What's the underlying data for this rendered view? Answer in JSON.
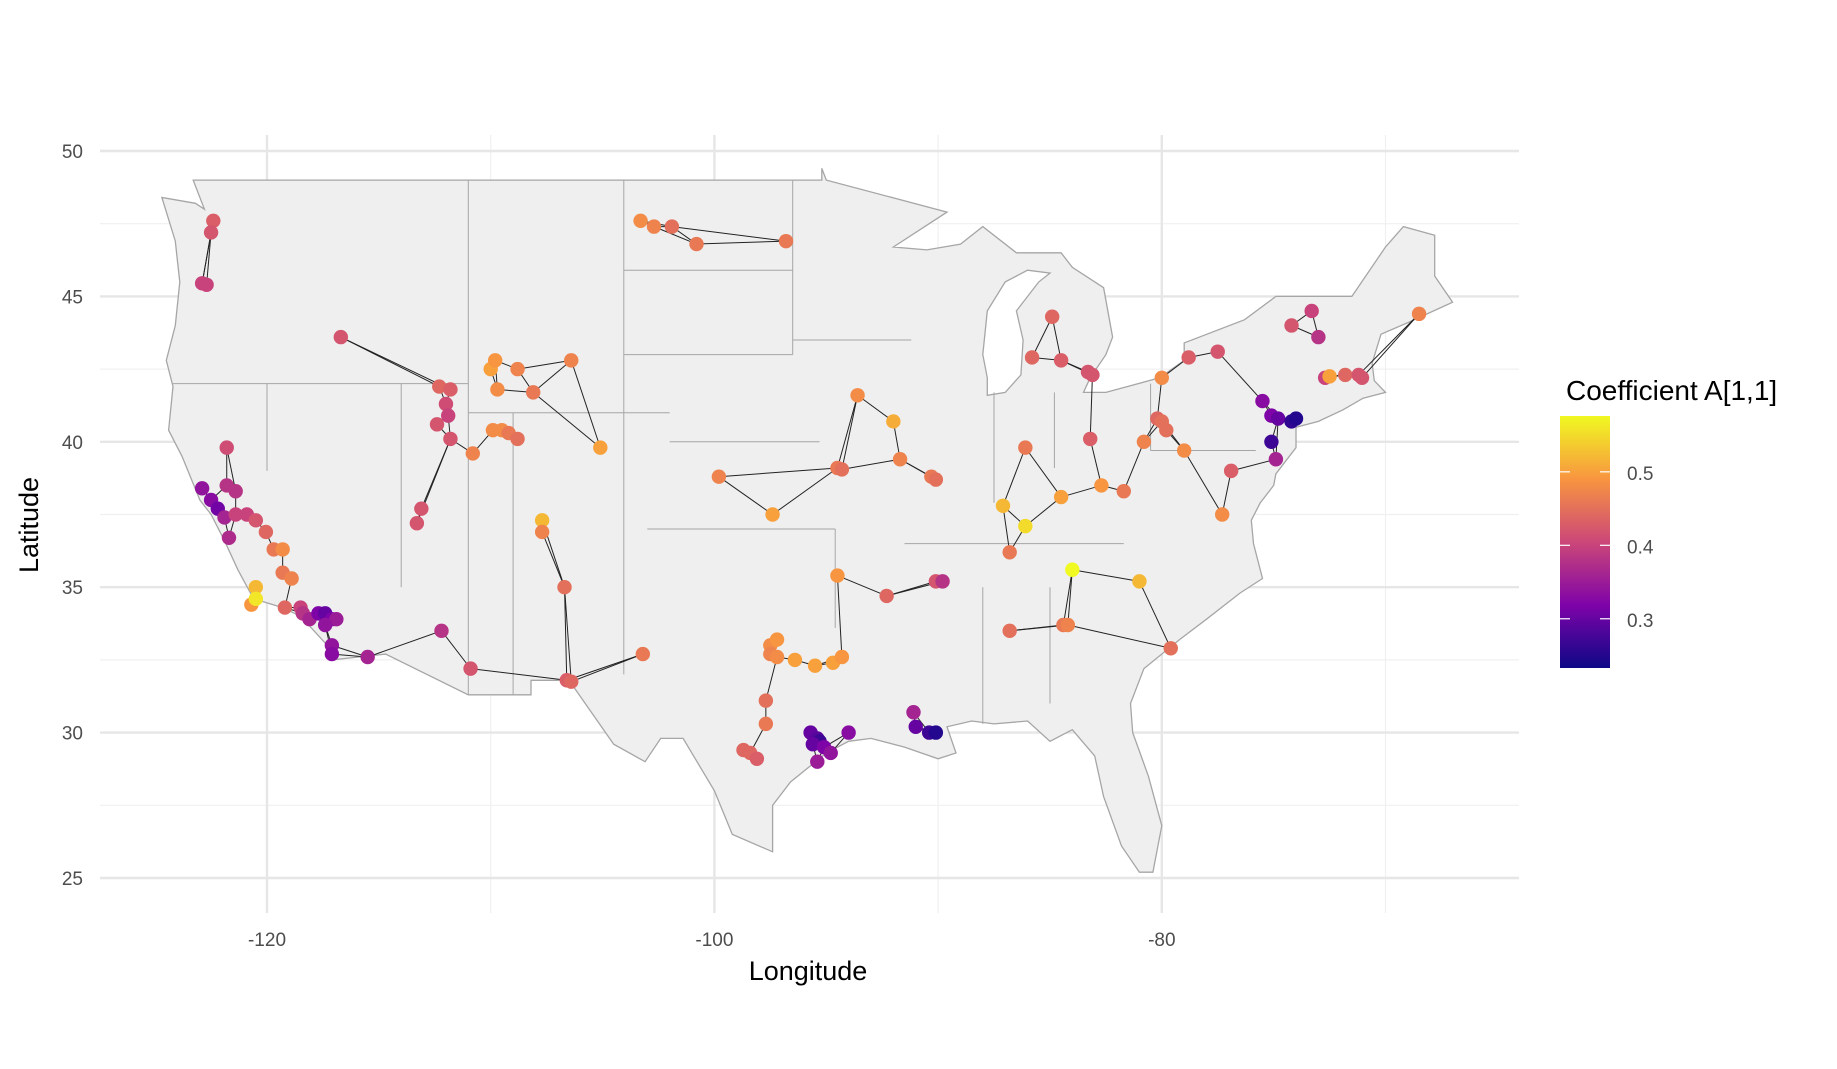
{
  "chart_data": {
    "type": "scatter",
    "title": "",
    "xlabel": "Longitude",
    "ylabel": "Latitude",
    "xlim": [
      -127.5,
      -64
    ],
    "ylim": [
      23.8,
      50.6
    ],
    "x_ticks": [
      -120,
      -100,
      -80
    ],
    "x_tick_labels": [
      "-120",
      "-100",
      "-80"
    ],
    "y_ticks": [
      25,
      30,
      35,
      40,
      45,
      50
    ],
    "y_tick_labels": [
      "25",
      "30",
      "35",
      "40",
      "45",
      "50"
    ],
    "grid": true,
    "background_map": "contiguous United States with state borders",
    "edges": "each station linked to its nearest neighbours",
    "legend": {
      "title": "Coefficient A[1,1]",
      "placement": "right",
      "range": [
        0.233,
        0.576
      ],
      "ticks": [
        0.3,
        0.4,
        0.5
      ],
      "tick_labels": [
        "0.3",
        "0.4",
        "0.5"
      ],
      "palette": "plasma",
      "colors": [
        "#0d0887",
        "#7e03a8",
        "#cc4778",
        "#f89540",
        "#f0f921"
      ]
    },
    "map_fill": "#efefef",
    "map_border": "#a6a6a6",
    "points_lon_lat_value": [
      [
        -122.4,
        47.6,
        0.43
      ],
      [
        -122.5,
        47.2,
        0.42
      ],
      [
        -122.7,
        45.4,
        0.4
      ],
      [
        -122.9,
        45.45,
        0.4
      ],
      [
        -116.7,
        43.6,
        0.42
      ],
      [
        -121.8,
        39.8,
        0.41
      ],
      [
        -122.9,
        38.4,
        0.34
      ],
      [
        -122.5,
        38.0,
        0.33
      ],
      [
        -122.2,
        37.7,
        0.31
      ],
      [
        -121.9,
        37.4,
        0.36
      ],
      [
        -121.7,
        36.7,
        0.37
      ],
      [
        -121.8,
        38.5,
        0.38
      ],
      [
        -121.4,
        38.3,
        0.38
      ],
      [
        -121.4,
        37.5,
        0.4
      ],
      [
        -120.9,
        37.5,
        0.4
      ],
      [
        -120.5,
        37.3,
        0.42
      ],
      [
        -120.05,
        36.9,
        0.44
      ],
      [
        -119.7,
        36.3,
        0.46
      ],
      [
        -119.3,
        36.3,
        0.48
      ],
      [
        -119.3,
        35.5,
        0.46
      ],
      [
        -118.9,
        35.3,
        0.47
      ],
      [
        -120.7,
        34.4,
        0.49
      ],
      [
        -120.5,
        35.0,
        0.52
      ],
      [
        -120.5,
        34.6,
        0.56
      ],
      [
        -119.2,
        34.3,
        0.44
      ],
      [
        -118.5,
        34.3,
        0.4
      ],
      [
        -118.4,
        34.1,
        0.38
      ],
      [
        -118.1,
        33.9,
        0.36
      ],
      [
        -117.7,
        34.1,
        0.32
      ],
      [
        -117.4,
        34.1,
        0.3
      ],
      [
        -117.1,
        33.9,
        0.32
      ],
      [
        -116.9,
        33.9,
        0.35
      ],
      [
        -117.4,
        33.7,
        0.34
      ],
      [
        -117.1,
        33.0,
        0.34
      ],
      [
        -117.1,
        32.7,
        0.33
      ],
      [
        -115.5,
        32.6,
        0.36
      ],
      [
        -112.2,
        33.5,
        0.38
      ],
      [
        -110.9,
        32.2,
        0.42
      ],
      [
        -106.6,
        31.8,
        0.43
      ],
      [
        -106.4,
        31.75,
        0.44
      ],
      [
        -106.7,
        35.0,
        0.45
      ],
      [
        -107.7,
        37.3,
        0.52
      ],
      [
        -107.7,
        36.9,
        0.47
      ],
      [
        -103.2,
        32.7,
        0.46
      ],
      [
        -113.3,
        37.2,
        0.42
      ],
      [
        -113.1,
        37.7,
        0.42
      ],
      [
        -112.3,
        41.9,
        0.44
      ],
      [
        -111.8,
        41.8,
        0.43
      ],
      [
        -112.0,
        41.3,
        0.41
      ],
      [
        -111.9,
        40.9,
        0.4
      ],
      [
        -112.4,
        40.6,
        0.42
      ],
      [
        -111.8,
        40.1,
        0.42
      ],
      [
        -110.8,
        39.6,
        0.47
      ],
      [
        -110.0,
        42.5,
        0.5
      ],
      [
        -109.8,
        42.8,
        0.49
      ],
      [
        -109.7,
        41.8,
        0.48
      ],
      [
        -109.9,
        40.4,
        0.48
      ],
      [
        -109.5,
        40.4,
        0.48
      ],
      [
        -109.2,
        40.3,
        0.46
      ],
      [
        -108.8,
        40.1,
        0.45
      ],
      [
        -108.8,
        42.5,
        0.47
      ],
      [
        -108.1,
        41.7,
        0.46
      ],
      [
        -106.4,
        42.8,
        0.47
      ],
      [
        -105.1,
        39.8,
        0.5
      ],
      [
        -103.3,
        47.6,
        0.48
      ],
      [
        -102.7,
        47.4,
        0.47
      ],
      [
        -101.9,
        47.4,
        0.45
      ],
      [
        -100.8,
        46.8,
        0.46
      ],
      [
        -96.8,
        46.9,
        0.46
      ],
      [
        -99.8,
        38.8,
        0.47
      ],
      [
        -97.4,
        37.5,
        0.5
      ],
      [
        -93.6,
        41.6,
        0.48
      ],
      [
        -92.0,
        40.7,
        0.51
      ],
      [
        -91.7,
        39.4,
        0.47
      ],
      [
        -94.5,
        39.1,
        0.46
      ],
      [
        -94.3,
        39.05,
        0.45
      ],
      [
        -90.3,
        38.8,
        0.46
      ],
      [
        -90.1,
        38.7,
        0.45
      ],
      [
        -94.5,
        35.4,
        0.49
      ],
      [
        -92.3,
        34.7,
        0.44
      ],
      [
        -90.1,
        35.2,
        0.42
      ],
      [
        -89.8,
        35.2,
        0.38
      ],
      [
        -97.5,
        33.0,
        0.48
      ],
      [
        -97.2,
        33.2,
        0.49
      ],
      [
        -97.5,
        32.7,
        0.47
      ],
      [
        -97.2,
        32.6,
        0.48
      ],
      [
        -96.4,
        32.5,
        0.5
      ],
      [
        -95.5,
        32.3,
        0.5
      ],
      [
        -94.7,
        32.4,
        0.5
      ],
      [
        -94.3,
        32.6,
        0.49
      ],
      [
        -97.7,
        31.1,
        0.45
      ],
      [
        -97.7,
        30.3,
        0.46
      ],
      [
        -98.7,
        29.4,
        0.44
      ],
      [
        -98.4,
        29.3,
        0.44
      ],
      [
        -98.1,
        29.1,
        0.43
      ],
      [
        -95.7,
        30.0,
        0.3
      ],
      [
        -95.4,
        29.8,
        0.29
      ],
      [
        -95.3,
        29.7,
        0.27
      ],
      [
        -95.6,
        29.6,
        0.3
      ],
      [
        -95.1,
        29.5,
        0.32
      ],
      [
        -94.8,
        29.3,
        0.34
      ],
      [
        -95.4,
        29.0,
        0.35
      ],
      [
        -94.0,
        30.0,
        0.33
      ],
      [
        -91.1,
        30.7,
        0.36
      ],
      [
        -91.0,
        30.2,
        0.3
      ],
      [
        -90.4,
        30.0,
        0.27
      ],
      [
        -90.1,
        30.0,
        0.25
      ],
      [
        -87.1,
        37.8,
        0.52
      ],
      [
        -86.1,
        37.1,
        0.55
      ],
      [
        -86.8,
        36.2,
        0.46
      ],
      [
        -86.8,
        33.5,
        0.45
      ],
      [
        -84.4,
        33.7,
        0.46
      ],
      [
        -84.2,
        33.7,
        0.47
      ],
      [
        -84.0,
        35.6,
        0.58
      ],
      [
        -84.5,
        38.1,
        0.5
      ],
      [
        -82.7,
        38.5,
        0.49
      ],
      [
        -81.7,
        38.3,
        0.46
      ],
      [
        -83.2,
        40.1,
        0.43
      ],
      [
        -86.1,
        39.8,
        0.46
      ],
      [
        -81.0,
        35.2,
        0.52
      ],
      [
        -79.6,
        32.9,
        0.45
      ],
      [
        -84.9,
        44.3,
        0.44
      ],
      [
        -85.8,
        42.9,
        0.44
      ],
      [
        -84.5,
        42.8,
        0.43
      ],
      [
        -83.3,
        42.4,
        0.42
      ],
      [
        -83.1,
        42.3,
        0.42
      ],
      [
        -80.0,
        42.2,
        0.48
      ],
      [
        -80.2,
        40.8,
        0.44
      ],
      [
        -80.0,
        40.7,
        0.45
      ],
      [
        -79.8,
        40.4,
        0.45
      ],
      [
        -80.8,
        40.0,
        0.47
      ],
      [
        -79.0,
        39.7,
        0.48
      ],
      [
        -78.8,
        42.9,
        0.43
      ],
      [
        -77.5,
        43.1,
        0.42
      ],
      [
        -76.9,
        39.0,
        0.43
      ],
      [
        -77.3,
        37.5,
        0.48
      ],
      [
        -75.5,
        41.4,
        0.33
      ],
      [
        -75.1,
        40.9,
        0.32
      ],
      [
        -75.1,
        40.0,
        0.27
      ],
      [
        -74.9,
        39.4,
        0.36
      ],
      [
        -74.8,
        40.8,
        0.3
      ],
      [
        -74.2,
        40.7,
        0.26
      ],
      [
        -74.0,
        40.8,
        0.25
      ],
      [
        -74.2,
        44.0,
        0.42
      ],
      [
        -73.3,
        44.5,
        0.4
      ],
      [
        -73.0,
        43.6,
        0.38
      ],
      [
        -72.7,
        42.2,
        0.4
      ],
      [
        -72.5,
        42.25,
        0.5
      ],
      [
        -71.8,
        42.3,
        0.44
      ],
      [
        -71.2,
        42.3,
        0.42
      ],
      [
        -71.05,
        42.2,
        0.42
      ],
      [
        -68.5,
        44.4,
        0.47
      ]
    ]
  }
}
